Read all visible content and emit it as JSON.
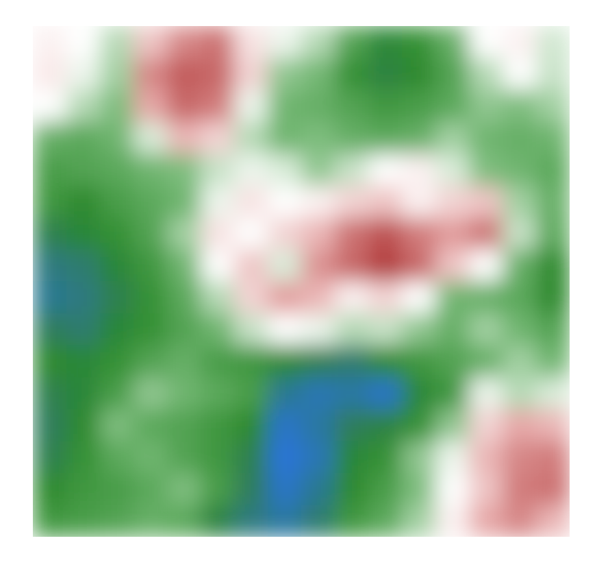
{
  "chart_data": {
    "type": "heatmap",
    "tick_labels": false,
    "values": [
      [
        62,
        60,
        52,
        68,
        78,
        82,
        64,
        58,
        52,
        38,
        28,
        32,
        42,
        60,
        62,
        55
      ],
      [
        63,
        58,
        50,
        78,
        86,
        84,
        66,
        48,
        45,
        32,
        26,
        30,
        38,
        52,
        60,
        54
      ],
      [
        60,
        52,
        46,
        72,
        84,
        80,
        58,
        44,
        42,
        38,
        34,
        36,
        40,
        48,
        46,
        50
      ],
      [
        42,
        40,
        44,
        56,
        70,
        66,
        52,
        44,
        46,
        42,
        40,
        42,
        50,
        44,
        42,
        44
      ],
      [
        36,
        38,
        40,
        44,
        46,
        54,
        58,
        56,
        48,
        54,
        60,
        62,
        56,
        46,
        44,
        40
      ],
      [
        34,
        30,
        36,
        40,
        44,
        58,
        64,
        60,
        62,
        66,
        68,
        62,
        66,
        68,
        50,
        42
      ],
      [
        24,
        28,
        32,
        38,
        50,
        64,
        60,
        66,
        70,
        82,
        88,
        80,
        74,
        82,
        54,
        40
      ],
      [
        18,
        20,
        28,
        34,
        44,
        60,
        68,
        56,
        76,
        84,
        92,
        84,
        68,
        60,
        42,
        30
      ],
      [
        16,
        18,
        24,
        32,
        40,
        52,
        66,
        74,
        70,
        62,
        66,
        60,
        44,
        42,
        40,
        30
      ],
      [
        22,
        20,
        28,
        32,
        38,
        44,
        54,
        60,
        58,
        52,
        54,
        48,
        42,
        50,
        44,
        38
      ],
      [
        30,
        28,
        32,
        38,
        42,
        36,
        34,
        30,
        24,
        20,
        30,
        34,
        38,
        42,
        50,
        44
      ],
      [
        24,
        28,
        36,
        48,
        44,
        40,
        36,
        16,
        12,
        14,
        10,
        28,
        34,
        58,
        52,
        56
      ],
      [
        22,
        30,
        46,
        40,
        38,
        34,
        30,
        10,
        14,
        22,
        26,
        32,
        48,
        66,
        72,
        70
      ],
      [
        24,
        32,
        40,
        44,
        38,
        34,
        24,
        8,
        12,
        28,
        32,
        48,
        58,
        70,
        78,
        80
      ],
      [
        30,
        34,
        36,
        40,
        46,
        36,
        22,
        10,
        16,
        30,
        36,
        46,
        60,
        68,
        80,
        82
      ],
      [
        34,
        36,
        38,
        42,
        40,
        26,
        18,
        14,
        20,
        34,
        40,
        50,
        62,
        72,
        78,
        70
      ]
    ]
  }
}
